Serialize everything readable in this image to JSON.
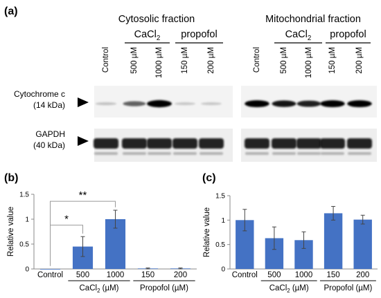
{
  "panel_labels": {
    "a": "(a)",
    "b": "(b)",
    "c": "(c)"
  },
  "blot": {
    "fractions": [
      {
        "title": "Cytosolic fraction",
        "groups": [
          {
            "name_main": "CaCl",
            "name_sub": "2"
          },
          {
            "name_main": "propofol",
            "name_sub": ""
          }
        ],
        "lanes": [
          "Control",
          "500 µM",
          "1000 µM",
          "150 µM",
          "200 µM"
        ]
      },
      {
        "title": "Mitochondrial fraction",
        "groups": [
          {
            "name_main": "CaCl",
            "name_sub": "2"
          },
          {
            "name_main": "propofol",
            "name_sub": ""
          }
        ],
        "lanes": [
          "Control",
          "500 µM",
          "1000 µM",
          "150 µM",
          "200 µM"
        ]
      }
    ],
    "rows": [
      {
        "name": "Cytochrome c",
        "size": "(14 kDa)"
      },
      {
        "name": "GAPDH",
        "size": "(40 kDa)"
      }
    ],
    "cyto_c_band_intensity": {
      "cytosolic": [
        0.05,
        0.5,
        1.0,
        0.03,
        0.03
      ],
      "mitochondrial": [
        0.95,
        0.85,
        0.8,
        0.95,
        0.95
      ]
    },
    "gapdh_band_intensity": {
      "cytosolic": [
        1,
        1,
        1,
        1,
        1
      ],
      "mitochondrial": [
        1,
        1,
        1,
        1,
        1
      ]
    }
  },
  "chart_data": [
    {
      "type": "bar",
      "panel": "(b)",
      "categories": [
        "Control",
        "500",
        "1000",
        "150",
        "200"
      ],
      "values": [
        0.0,
        0.45,
        1.0,
        0.01,
        0.01
      ],
      "errors": [
        0.0,
        0.2,
        0.18,
        0.01,
        0.01
      ],
      "ylabel": "Relative value",
      "ylim": [
        0,
        1.5
      ],
      "yticks": [
        "0",
        "0.5",
        "1",
        "1.5"
      ],
      "groups": [
        {
          "label_main": "CaCl",
          "label_sub": "2",
          "label_tail": " (µM)"
        },
        {
          "label_main": "Propofol (µM)",
          "label_sub": "",
          "label_tail": ""
        }
      ],
      "significance": [
        "*",
        "**"
      ],
      "color": "#4472c4"
    },
    {
      "type": "bar",
      "panel": "(c)",
      "categories": [
        "Control",
        "500",
        "1000",
        "150",
        "200"
      ],
      "values": [
        1.0,
        0.63,
        0.59,
        1.14,
        1.01
      ],
      "errors": [
        0.22,
        0.23,
        0.17,
        0.14,
        0.09
      ],
      "ylabel": "Relative value",
      "ylim": [
        0,
        1.5
      ],
      "yticks": [
        "0",
        "0.5",
        "1",
        "1.5"
      ],
      "groups": [
        {
          "label_main": "CaCl",
          "label_sub": "2",
          "label_tail": " (µM)"
        },
        {
          "label_main": "Propofol (µM)",
          "label_sub": "",
          "label_tail": ""
        }
      ],
      "significance": [],
      "color": "#4472c4"
    }
  ]
}
